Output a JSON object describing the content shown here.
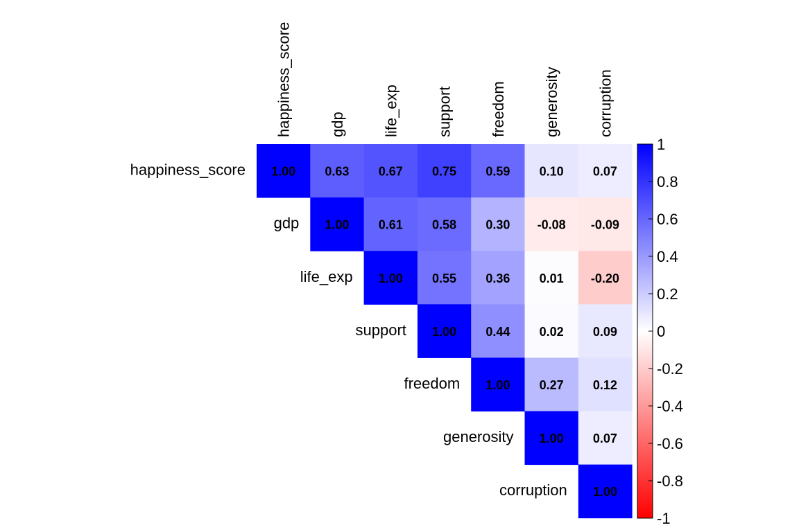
{
  "chart_data": {
    "type": "heatmap",
    "variables": [
      "happiness_score",
      "gdp",
      "life_exp",
      "support",
      "freedom",
      "generosity",
      "corruption"
    ],
    "matrix": [
      [
        1.0,
        0.63,
        0.67,
        0.75,
        0.59,
        0.1,
        0.07
      ],
      [
        null,
        1.0,
        0.61,
        0.58,
        0.3,
        -0.08,
        -0.09
      ],
      [
        null,
        null,
        1.0,
        0.55,
        0.36,
        0.01,
        -0.2
      ],
      [
        null,
        null,
        null,
        1.0,
        0.44,
        0.02,
        0.09
      ],
      [
        null,
        null,
        null,
        null,
        1.0,
        0.27,
        0.12
      ],
      [
        null,
        null,
        null,
        null,
        null,
        1.0,
        0.07
      ],
      [
        null,
        null,
        null,
        null,
        null,
        null,
        1.0
      ]
    ],
    "labels": [
      [
        "1.00",
        "0.63",
        "0.67",
        "0.75",
        "0.59",
        "0.10",
        "0.07"
      ],
      [
        null,
        "1.00",
        "0.61",
        "0.58",
        "0.30",
        "-0.08",
        "-0.09"
      ],
      [
        null,
        null,
        "1.00",
        "0.55",
        "0.36",
        "0.01",
        "-0.20"
      ],
      [
        null,
        null,
        null,
        "1.00",
        "0.44",
        "0.02",
        "0.09"
      ],
      [
        null,
        null,
        null,
        null,
        "1.00",
        "0.27",
        "0.12"
      ],
      [
        null,
        null,
        null,
        null,
        null,
        "1.00",
        "0.07"
      ],
      [
        null,
        null,
        null,
        null,
        null,
        null,
        "1.00"
      ]
    ],
    "colorbar": {
      "range": [
        -1,
        1
      ],
      "ticks": [
        "1",
        "0.8",
        "0.6",
        "0.4",
        "0.2",
        "0",
        "-0.2",
        "-0.4",
        "-0.6",
        "-0.8",
        "-1"
      ],
      "tick_values": [
        1,
        0.8,
        0.6,
        0.4,
        0.2,
        0,
        -0.2,
        -0.4,
        -0.6,
        -0.8,
        -1
      ],
      "low_color": "#FF0000",
      "mid_color": "#FFFFFF",
      "high_color": "#0000FF"
    },
    "legend": "right",
    "grid": false
  }
}
